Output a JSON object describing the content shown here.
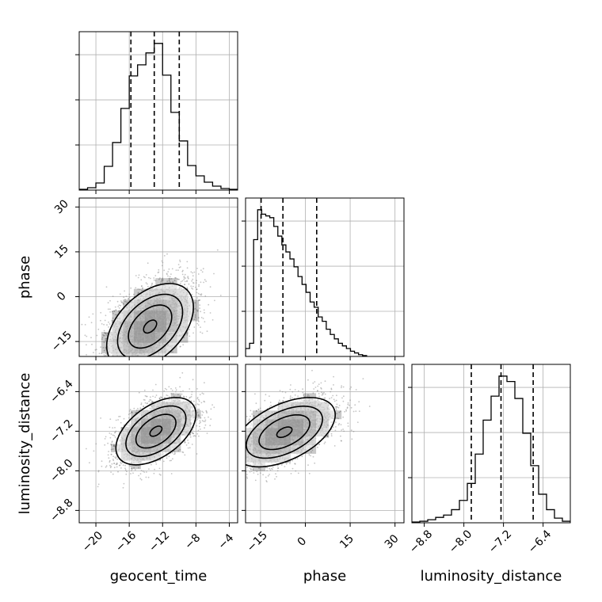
{
  "chart_data": {
    "type": "corner",
    "parameters": [
      "geocent_time",
      "phase",
      "luminosity_distance"
    ],
    "axis_ranges": {
      "geocent_time": [
        -22,
        -3
      ],
      "phase": [
        -20,
        33
      ],
      "luminosity_distance": [
        -9.05,
        -5.85
      ]
    },
    "ticks": {
      "geocent_time": [
        -20,
        -16,
        -12,
        -8,
        -4
      ],
      "phase": [
        -15,
        0,
        15,
        30
      ],
      "luminosity_distance": [
        -8.8,
        -8.0,
        -7.2,
        -6.4
      ]
    },
    "tick_labels": {
      "geocent_time": [
        "−20",
        "−16",
        "−12",
        "−8",
        "−4"
      ],
      "phase": [
        "−15",
        "0",
        "15",
        "30"
      ],
      "luminosity_distance": [
        "−8.8",
        "−8.0",
        "−7.2",
        "−6.4"
      ]
    },
    "histograms": {
      "geocent_time": {
        "bin_edges": [
          -22,
          -21,
          -20,
          -19,
          -18,
          -17,
          -16,
          -15,
          -14,
          -13,
          -12,
          -11,
          -10,
          -9,
          -8,
          -7,
          -6,
          -5,
          -4,
          -3
        ],
        "counts": [
          1,
          3,
          9,
          30,
          60,
          103,
          144,
          158,
          173,
          185,
          145,
          98,
          62,
          31,
          18,
          10,
          5,
          2,
          1
        ],
        "quantiles": [
          -15.8,
          -13.0,
          -10.0
        ]
      },
      "phase": {
        "bin_edges": [
          -20,
          -18.65,
          -17.3,
          -15.95,
          -14.6,
          -13.25,
          -11.9,
          -10.55,
          -9.2,
          -7.85,
          -6.5,
          -5.15,
          -3.8,
          -2.45,
          -1.1,
          0.25,
          1.6,
          2.95,
          4.3,
          5.65,
          7.0,
          8.35,
          9.7,
          11.05,
          12.4,
          13.75,
          15.1,
          16.45,
          17.8,
          19.15,
          20.5
        ],
        "counts": [
          9,
          15,
          133,
          167,
          162,
          160,
          158,
          148,
          137,
          127,
          119,
          111,
          102,
          91,
          82,
          73,
          62,
          56,
          45,
          40,
          31,
          25,
          20,
          15,
          12,
          9,
          6,
          4,
          2,
          1
        ],
        "quantiles": [
          -14.8,
          -7.5,
          3.8
        ]
      },
      "luminosity_distance": {
        "bin_edges": [
          -9.05,
          -8.89,
          -8.73,
          -8.57,
          -8.41,
          -8.25,
          -8.09,
          -7.93,
          -7.77,
          -7.61,
          -7.45,
          -7.29,
          -7.13,
          -6.97,
          -6.81,
          -6.65,
          -6.49,
          -6.33,
          -6.17,
          -6.01,
          -5.85
        ],
        "counts": [
          1,
          2,
          4,
          7,
          10,
          17,
          29,
          51,
          89,
          133,
          164,
          190,
          183,
          161,
          116,
          74,
          37,
          17,
          6,
          2
        ],
        "quantiles": [
          -7.85,
          -7.25,
          -6.6
        ]
      }
    },
    "pairs": [
      {
        "x": "geocent_time",
        "y": "phase",
        "center": [
          -13.5,
          -10.0
        ],
        "sd": [
          2.6,
          7.2
        ],
        "corr": 0.45,
        "contour_levels": [
          0.3,
          1.0,
          1.5,
          2.0
        ]
      },
      {
        "x": "geocent_time",
        "y": "luminosity_distance",
        "center": [
          -12.8,
          -7.2
        ],
        "sd": [
          2.4,
          0.34
        ],
        "corr": 0.5,
        "contour_levels": [
          0.3,
          1.0,
          1.5,
          2.0
        ]
      },
      {
        "x": "phase",
        "y": "luminosity_distance",
        "center": [
          -7.0,
          -7.22
        ],
        "sd": [
          8.5,
          0.35
        ],
        "corr": 0.5,
        "contour_levels": [
          0.3,
          1.0,
          1.5,
          2.0
        ]
      }
    ],
    "grid": true,
    "colors": {
      "density": "#000000",
      "samples": "#7f7f7f",
      "grid": "#b0b0b0"
    }
  }
}
